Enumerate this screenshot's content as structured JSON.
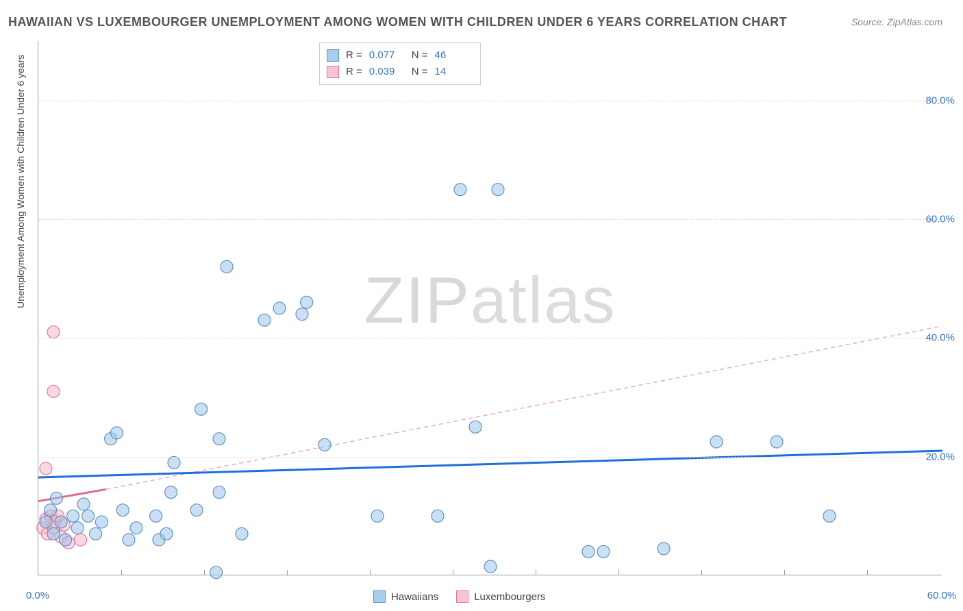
{
  "title": "HAWAIIAN VS LUXEMBOURGER UNEMPLOYMENT AMONG WOMEN WITH CHILDREN UNDER 6 YEARS CORRELATION CHART",
  "source_label": "Source:",
  "source_value": "ZipAtlas.com",
  "y_axis_label": "Unemployment Among Women with Children Under 6 years",
  "watermark_a": "ZIP",
  "watermark_b": "atlas",
  "chart": {
    "type": "scatter",
    "xlim": [
      0,
      60
    ],
    "ylim": [
      0,
      90
    ],
    "x_ticks_minor": [
      5.5,
      11,
      16.5,
      22,
      27.5,
      33,
      38.5,
      44,
      49.5,
      55
    ],
    "x_tick_labels": [
      {
        "x": 0,
        "label": "0.0%"
      },
      {
        "x": 60,
        "label": "60.0%"
      }
    ],
    "y_gridlines": [
      20,
      40,
      60,
      80
    ],
    "y_tick_labels": [
      {
        "y": 20,
        "label": "20.0%"
      },
      {
        "y": 40,
        "label": "40.0%"
      },
      {
        "y": 60,
        "label": "60.0%"
      },
      {
        "y": 80,
        "label": "80.0%"
      }
    ],
    "grid_color": "#dddddd",
    "background_color": "#ffffff",
    "series": [
      {
        "name": "Hawaiians",
        "color_fill": "#9ec5e8",
        "color_stroke": "#5d93c9",
        "swatch_fill": "#a9cdee",
        "swatch_border": "#5d93c9",
        "marker_radius": 9,
        "fill_opacity": 0.55,
        "R": "0.077",
        "N": "46",
        "trend_solid": {
          "x1": 0,
          "y1": 16.5,
          "x2": 60,
          "y2": 21.0,
          "color": "#1e6fd6",
          "width": 3
        },
        "points": [
          {
            "x": 0.5,
            "y": 9
          },
          {
            "x": 0.8,
            "y": 11
          },
          {
            "x": 1.0,
            "y": 7
          },
          {
            "x": 1.2,
            "y": 13
          },
          {
            "x": 1.5,
            "y": 9
          },
          {
            "x": 1.8,
            "y": 6
          },
          {
            "x": 2.3,
            "y": 10
          },
          {
            "x": 2.6,
            "y": 8
          },
          {
            "x": 3.0,
            "y": 12
          },
          {
            "x": 3.3,
            "y": 10
          },
          {
            "x": 3.8,
            "y": 7
          },
          {
            "x": 4.2,
            "y": 9
          },
          {
            "x": 4.8,
            "y": 23
          },
          {
            "x": 5.2,
            "y": 24
          },
          {
            "x": 5.6,
            "y": 11
          },
          {
            "x": 6.0,
            "y": 6
          },
          {
            "x": 6.5,
            "y": 8
          },
          {
            "x": 7.8,
            "y": 10
          },
          {
            "x": 8.0,
            "y": 6
          },
          {
            "x": 8.5,
            "y": 7
          },
          {
            "x": 8.8,
            "y": 14
          },
          {
            "x": 9.0,
            "y": 19
          },
          {
            "x": 10.5,
            "y": 11
          },
          {
            "x": 10.8,
            "y": 28
          },
          {
            "x": 11.8,
            "y": 0.5
          },
          {
            "x": 12.0,
            "y": 14
          },
          {
            "x": 12.0,
            "y": 23
          },
          {
            "x": 12.5,
            "y": 52
          },
          {
            "x": 13.5,
            "y": 7
          },
          {
            "x": 15.0,
            "y": 43
          },
          {
            "x": 16.0,
            "y": 45
          },
          {
            "x": 17.5,
            "y": 44
          },
          {
            "x": 17.8,
            "y": 46
          },
          {
            "x": 19.0,
            "y": 22
          },
          {
            "x": 22.5,
            "y": 10
          },
          {
            "x": 26.5,
            "y": 10
          },
          {
            "x": 28.0,
            "y": 65
          },
          {
            "x": 29.0,
            "y": 25
          },
          {
            "x": 30.0,
            "y": 1.5
          },
          {
            "x": 30.5,
            "y": 65
          },
          {
            "x": 36.5,
            "y": 4
          },
          {
            "x": 37.5,
            "y": 4
          },
          {
            "x": 41.5,
            "y": 4.5
          },
          {
            "x": 45.0,
            "y": 22.5
          },
          {
            "x": 49.0,
            "y": 22.5
          },
          {
            "x": 52.5,
            "y": 10
          }
        ]
      },
      {
        "name": "Luxembourgers",
        "color_fill": "#f5b8c9",
        "color_stroke": "#e07ba0",
        "swatch_fill": "#f8c3d3",
        "swatch_border": "#e07ba0",
        "marker_radius": 9,
        "fill_opacity": 0.55,
        "R": "0.039",
        "N": "14",
        "trend_solid": {
          "x1": 0,
          "y1": 12.5,
          "x2": 4.5,
          "y2": 14.5,
          "color": "#e26a94",
          "width": 3
        },
        "trend_dashed": {
          "x1": 4.5,
          "y1": 14.5,
          "x2": 60,
          "y2": 42,
          "color": "#f2a8bd",
          "width": 1.5,
          "dash": "6,5"
        },
        "points": [
          {
            "x": 0.3,
            "y": 8
          },
          {
            "x": 0.5,
            "y": 9.5
          },
          {
            "x": 0.6,
            "y": 7
          },
          {
            "x": 0.8,
            "y": 10
          },
          {
            "x": 1.0,
            "y": 8
          },
          {
            "x": 1.1,
            "y": 9
          },
          {
            "x": 1.3,
            "y": 10
          },
          {
            "x": 1.5,
            "y": 6.5
          },
          {
            "x": 1.7,
            "y": 8.5
          },
          {
            "x": 2.0,
            "y": 5.5
          },
          {
            "x": 2.8,
            "y": 6
          },
          {
            "x": 0.5,
            "y": 18
          },
          {
            "x": 1.0,
            "y": 31
          },
          {
            "x": 1.0,
            "y": 41
          }
        ]
      }
    ]
  },
  "legend_top": {
    "r_label": "R =",
    "n_label": "N ="
  },
  "legend_bottom": {
    "series1": "Hawaiians",
    "series2": "Luxembourgers"
  }
}
